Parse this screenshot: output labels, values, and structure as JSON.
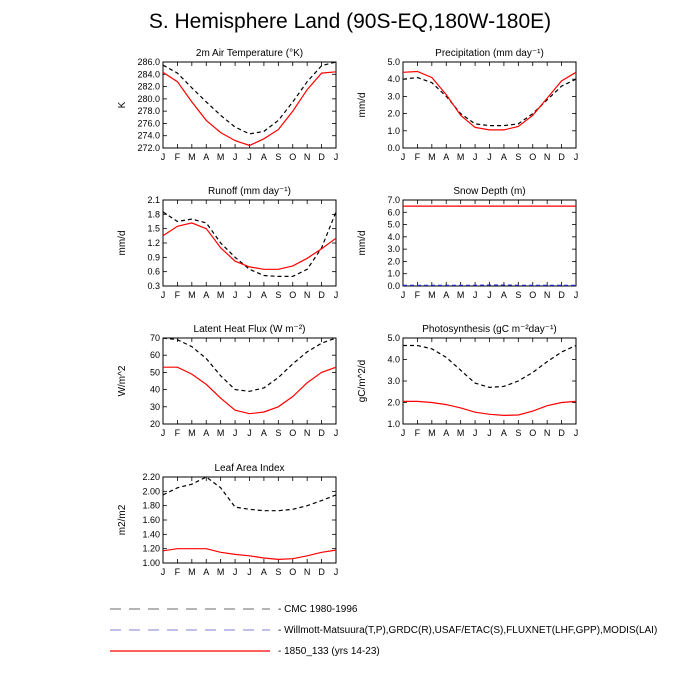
{
  "title": "S. Hemisphere Land (90S-EQ,180W-180E)",
  "months": [
    "J",
    "F",
    "M",
    "A",
    "M",
    "J",
    "J",
    "A",
    "S",
    "O",
    "N",
    "D",
    "J"
  ],
  "colors": {
    "obs": "#000000",
    "obs2": "#2222cc",
    "model": "#ff0000",
    "legend_dash": "#888888"
  },
  "legend": [
    {
      "label": "CMC 1980-1996",
      "style": "dashed-gray"
    },
    {
      "label": "Willmott-Matsuura(T,P),GRDC(R),USAF/ETAC(S),FLUXNET(LHF,GPP),MODIS(LAI)",
      "style": "dashed-blue"
    },
    {
      "label": "1850_133 (yrs 14-23)",
      "style": "solid-red"
    }
  ],
  "chart_data": [
    {
      "type": "line",
      "title": "2m Air Temperature (°K)",
      "ylabel": "K",
      "ylim": [
        272,
        286
      ],
      "yticks": [
        "272.0",
        "274.0",
        "276.0",
        "278.0",
        "280.0",
        "282.0",
        "284.0",
        "286.0"
      ],
      "ytick_values": [
        272,
        274,
        276,
        278,
        280,
        282,
        284,
        286
      ],
      "x": [
        "J",
        "F",
        "M",
        "A",
        "M",
        "J",
        "J",
        "A",
        "S",
        "O",
        "N",
        "D",
        "J"
      ],
      "series": [
        {
          "values": [
            285.5,
            284.2,
            281.8,
            279.5,
            277.3,
            275.4,
            274.3,
            274.7,
            276.5,
            279.5,
            282.8,
            285.4,
            286.0
          ],
          "style": "dashed-black"
        },
        {
          "values": [
            284.3,
            282.8,
            279.5,
            276.5,
            274.5,
            273.2,
            272.4,
            273.5,
            275.0,
            278.0,
            281.5,
            284.2,
            284.4
          ],
          "style": "solid-red"
        }
      ]
    },
    {
      "type": "line",
      "title": "Precipitation (mm day⁻¹)",
      "ylabel": "mm/d",
      "ylim": [
        0,
        5
      ],
      "yticks": [
        "0.0",
        "1.0",
        "2.0",
        "3.0",
        "4.0",
        "5.0"
      ],
      "ytick_values": [
        0,
        1,
        2,
        3,
        4,
        5
      ],
      "x": [
        "J",
        "F",
        "M",
        "A",
        "M",
        "J",
        "J",
        "A",
        "S",
        "O",
        "N",
        "D",
        "J"
      ],
      "series": [
        {
          "values": [
            4.0,
            4.1,
            3.8,
            3.0,
            2.0,
            1.4,
            1.3,
            1.3,
            1.4,
            2.0,
            2.8,
            3.6,
            4.0
          ],
          "style": "dashed-black"
        },
        {
          "values": [
            4.4,
            4.45,
            4.1,
            3.1,
            1.9,
            1.2,
            1.05,
            1.05,
            1.25,
            1.9,
            2.9,
            3.9,
            4.4
          ],
          "style": "solid-red"
        }
      ]
    },
    {
      "type": "line",
      "title": "Runoff (mm day⁻¹)",
      "ylabel": "mm/d",
      "ylim": [
        0.3,
        2.1
      ],
      "yticks": [
        "0.3",
        "0.6",
        "0.9",
        "1.2",
        "1.5",
        "1.8",
        "2.1"
      ],
      "ytick_values": [
        0.3,
        0.6,
        0.9,
        1.2,
        1.5,
        1.8,
        2.1
      ],
      "x": [
        "J",
        "F",
        "M",
        "A",
        "M",
        "J",
        "J",
        "A",
        "S",
        "O",
        "N",
        "D",
        "J"
      ],
      "series": [
        {
          "values": [
            1.85,
            1.65,
            1.7,
            1.62,
            1.2,
            0.9,
            0.65,
            0.52,
            0.5,
            0.5,
            0.65,
            1.1,
            1.85
          ],
          "style": "dashed-black"
        },
        {
          "values": [
            1.35,
            1.55,
            1.62,
            1.5,
            1.1,
            0.82,
            0.7,
            0.65,
            0.65,
            0.72,
            0.88,
            1.08,
            1.3
          ],
          "style": "solid-red"
        }
      ]
    },
    {
      "type": "line",
      "title": "Snow Depth (m)",
      "ylabel": "mm/d",
      "ylim": [
        0,
        7
      ],
      "yticks": [
        "0.0",
        "1.0",
        "2.0",
        "3.0",
        "4.0",
        "5.0",
        "6.0",
        "7.0"
      ],
      "ytick_values": [
        0,
        1,
        2,
        3,
        4,
        5,
        6,
        7
      ],
      "x": [
        "J",
        "F",
        "M",
        "A",
        "M",
        "J",
        "J",
        "A",
        "S",
        "O",
        "N",
        "D",
        "J"
      ],
      "series": [
        {
          "values": [
            0.05,
            0.05,
            0.05,
            0.05,
            0.05,
            0.06,
            0.07,
            0.07,
            0.06,
            0.05,
            0.05,
            0.05,
            0.05
          ],
          "style": "dashed-blue"
        },
        {
          "values": [
            6.5,
            6.5,
            6.5,
            6.5,
            6.5,
            6.5,
            6.5,
            6.5,
            6.5,
            6.5,
            6.5,
            6.5,
            6.5
          ],
          "style": "solid-red"
        }
      ]
    },
    {
      "type": "line",
      "title": "Latent Heat Flux (W m⁻²)",
      "ylabel": "W/m^2",
      "ylim": [
        20,
        70
      ],
      "yticks": [
        "20",
        "30",
        "40",
        "50",
        "60",
        "70"
      ],
      "ytick_values": [
        20,
        30,
        40,
        50,
        60,
        70
      ],
      "x": [
        "J",
        "F",
        "M",
        "A",
        "M",
        "J",
        "J",
        "A",
        "S",
        "O",
        "N",
        "D",
        "J"
      ],
      "series": [
        {
          "values": [
            70,
            69,
            65,
            58,
            48,
            40,
            39,
            41,
            47,
            55,
            62,
            67,
            70
          ],
          "style": "dashed-black"
        },
        {
          "values": [
            53,
            53,
            49,
            43,
            35,
            28,
            26,
            27,
            30,
            36,
            44,
            50,
            53
          ],
          "style": "solid-red"
        }
      ]
    },
    {
      "type": "line",
      "title": "Photosynthesis (gC m⁻²day⁻¹)",
      "ylabel": "gC/m^2/d",
      "ylim": [
        1,
        5
      ],
      "yticks": [
        "1.0",
        "2.0",
        "3.0",
        "4.0",
        "5.0"
      ],
      "ytick_values": [
        1,
        2,
        3,
        4,
        5
      ],
      "x": [
        "J",
        "F",
        "M",
        "A",
        "M",
        "J",
        "J",
        "A",
        "S",
        "O",
        "N",
        "D",
        "J"
      ],
      "series": [
        {
          "values": [
            4.65,
            4.65,
            4.5,
            4.1,
            3.5,
            2.9,
            2.7,
            2.75,
            3.0,
            3.4,
            3.9,
            4.35,
            4.65
          ],
          "style": "dashed-black"
        },
        {
          "values": [
            2.05,
            2.05,
            2.0,
            1.9,
            1.75,
            1.55,
            1.45,
            1.4,
            1.42,
            1.6,
            1.85,
            2.0,
            2.05
          ],
          "style": "solid-red"
        }
      ]
    },
    {
      "type": "line",
      "title": "Leaf Area Index",
      "ylabel": "m2/m2",
      "ylim": [
        1.0,
        2.2
      ],
      "yticks": [
        "1.00",
        "1.20",
        "1.40",
        "1.60",
        "1.80",
        "2.00",
        "2.20"
      ],
      "ytick_values": [
        1.0,
        1.2,
        1.4,
        1.6,
        1.8,
        2.0,
        2.2
      ],
      "x": [
        "J",
        "F",
        "M",
        "A",
        "M",
        "J",
        "J",
        "A",
        "S",
        "O",
        "N",
        "D",
        "J"
      ],
      "series": [
        {
          "values": [
            1.95,
            2.05,
            2.1,
            2.2,
            2.05,
            1.78,
            1.75,
            1.73,
            1.73,
            1.75,
            1.8,
            1.87,
            1.95
          ],
          "style": "dashed-black"
        },
        {
          "values": [
            1.17,
            1.2,
            1.2,
            1.2,
            1.15,
            1.12,
            1.1,
            1.07,
            1.05,
            1.06,
            1.1,
            1.15,
            1.18
          ],
          "style": "solid-red"
        }
      ]
    }
  ]
}
